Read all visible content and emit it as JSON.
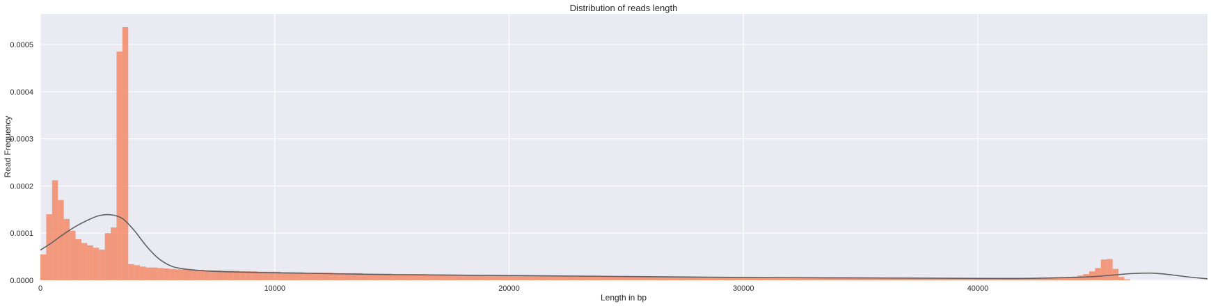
{
  "chart_data": {
    "type": "bar",
    "title": "Distribution of reads length",
    "xlabel": "Length in bp",
    "ylabel": "Read Frequency",
    "xlim": [
      0,
      49800
    ],
    "ylim": [
      0,
      0.000565
    ],
    "xticks": [
      0,
      10000,
      20000,
      30000,
      40000
    ],
    "yticks": [
      0,
      0.0001,
      0.0002,
      0.0003,
      0.0004,
      0.0005
    ],
    "xtick_labels": [
      "0",
      "10000",
      "20000",
      "30000",
      "40000"
    ],
    "ytick_labels": [
      "0.0000",
      "0.0001",
      "0.0002",
      "0.0003",
      "0.0004",
      "0.0005"
    ],
    "grid": true,
    "histogram": {
      "bin_start": 0,
      "bin_width": 250,
      "densities": [
        5.5e-05,
        0.00014,
        0.000212,
        0.00017,
        0.00013,
        0.000105,
        8.7e-05,
        7.9e-05,
        7.4e-05,
        6.9e-05,
        6.5e-05,
        0.0001,
        0.000112,
        0.000485,
        0.000537,
        3.4e-05,
        3.2e-05,
        2.9e-05,
        2.7e-05,
        2.7e-05,
        2.6e-05,
        2.5e-05,
        2.4e-05,
        2.3e-05,
        2.3e-05,
        2.2e-05,
        2.2e-05,
        2.2e-05,
        2.1e-05,
        2.1e-05,
        2.1e-05,
        2e-05,
        2e-05,
        2e-05,
        1.9e-05,
        1.9e-05,
        1.9e-05,
        1.8e-05,
        1.8e-05,
        1.8e-05,
        1.8e-05,
        1.7e-05,
        1.7e-05,
        1.7e-05,
        1.7e-05,
        1.6e-05,
        1.6e-05,
        1.6e-05,
        1.6e-05,
        1.6e-05,
        1.5e-05,
        1.5e-05,
        1.5e-05,
        1.5e-05,
        1.5e-05,
        1.4e-05,
        1.4e-05,
        1.4e-05,
        1.4e-05,
        1.4e-05,
        1.3e-05,
        1.3e-05,
        1.3e-05,
        1.3e-05,
        1.3e-05,
        1.3e-05,
        1.2e-05,
        1.2e-05,
        1.2e-05,
        1.2e-05,
        1.2e-05,
        1.2e-05,
        1.1e-05,
        1.1e-05,
        1.1e-05,
        1.1e-05,
        1.1e-05,
        1.1e-05,
        1.1e-05,
        1e-05,
        1e-05,
        1e-05,
        1e-05,
        1e-05,
        1e-05,
        1e-05,
        1e-05,
        9e-06,
        9e-06,
        9e-06,
        9e-06,
        9e-06,
        9e-06,
        9e-06,
        9e-06,
        8e-06,
        8e-06,
        8e-06,
        8e-06,
        8e-06,
        8e-06,
        8e-06,
        8e-06,
        8e-06,
        7e-06,
        7e-06,
        7e-06,
        7e-06,
        7e-06,
        7e-06,
        7e-06,
        7e-06,
        7e-06,
        7e-06,
        6e-06,
        6e-06,
        6e-06,
        6e-06,
        6e-06,
        6e-06,
        6e-06,
        6e-06,
        6e-06,
        6e-06,
        6e-06,
        6e-06,
        5e-06,
        5e-06,
        5e-06,
        5e-06,
        5e-06,
        5e-06,
        5e-06,
        5e-06,
        5e-06,
        5e-06,
        5e-06,
        5e-06,
        5e-06,
        5e-06,
        5e-06,
        5e-06,
        5e-06,
        5e-06,
        5e-06,
        5e-06,
        5e-06,
        5e-06,
        5e-06,
        5e-06,
        5e-06,
        5e-06,
        5e-06,
        5e-06,
        5e-06,
        5e-06,
        5e-06,
        5e-06,
        5e-06,
        5e-06,
        5e-06,
        5e-06,
        5e-06,
        5e-06,
        5e-06,
        5e-06,
        5e-06,
        5e-06,
        5e-06,
        5e-06,
        5e-06,
        5e-06,
        5e-06,
        6e-06,
        6e-06,
        7e-06,
        8e-06,
        1e-05,
        1.3e-05,
        1.9e-05,
        2.6e-05,
        4.4e-05,
        4.5e-05,
        2.4e-05,
        7e-06,
        2e-06
      ]
    },
    "kde": {
      "x": [
        0,
        500,
        1000,
        1500,
        2000,
        2500,
        3000,
        3500,
        4000,
        4500,
        5000,
        5500,
        6000,
        7000,
        8000,
        10000,
        15000,
        20000,
        25000,
        30000,
        35000,
        40000,
        42000,
        44000,
        45000,
        46000,
        46500,
        47000,
        47500,
        48000,
        48500,
        49000,
        49800
      ],
      "y": [
        6.4e-05,
        8e-05,
        9.8e-05,
        0.000114,
        0.000127,
        0.000137,
        0.000139,
        0.000131,
        0.000106,
        7.4e-05,
        4.8e-05,
        3.2e-05,
        2.5e-05,
        2e-05,
        1.8e-05,
        1.6e-05,
        1.2e-05,
        1e-05,
        8e-06,
        6e-06,
        5e-06,
        4e-06,
        4e-06,
        6e-06,
        8e-06,
        1.2e-05,
        1.4e-05,
        1.5e-05,
        1.5e-05,
        1.3e-05,
        1e-05,
        7e-06,
        3e-06
      ]
    },
    "colors": {
      "bars": "#f4845f",
      "kde_line": "#606060",
      "plot_background": "#eaeaf2",
      "grid": "#ffffff"
    }
  }
}
